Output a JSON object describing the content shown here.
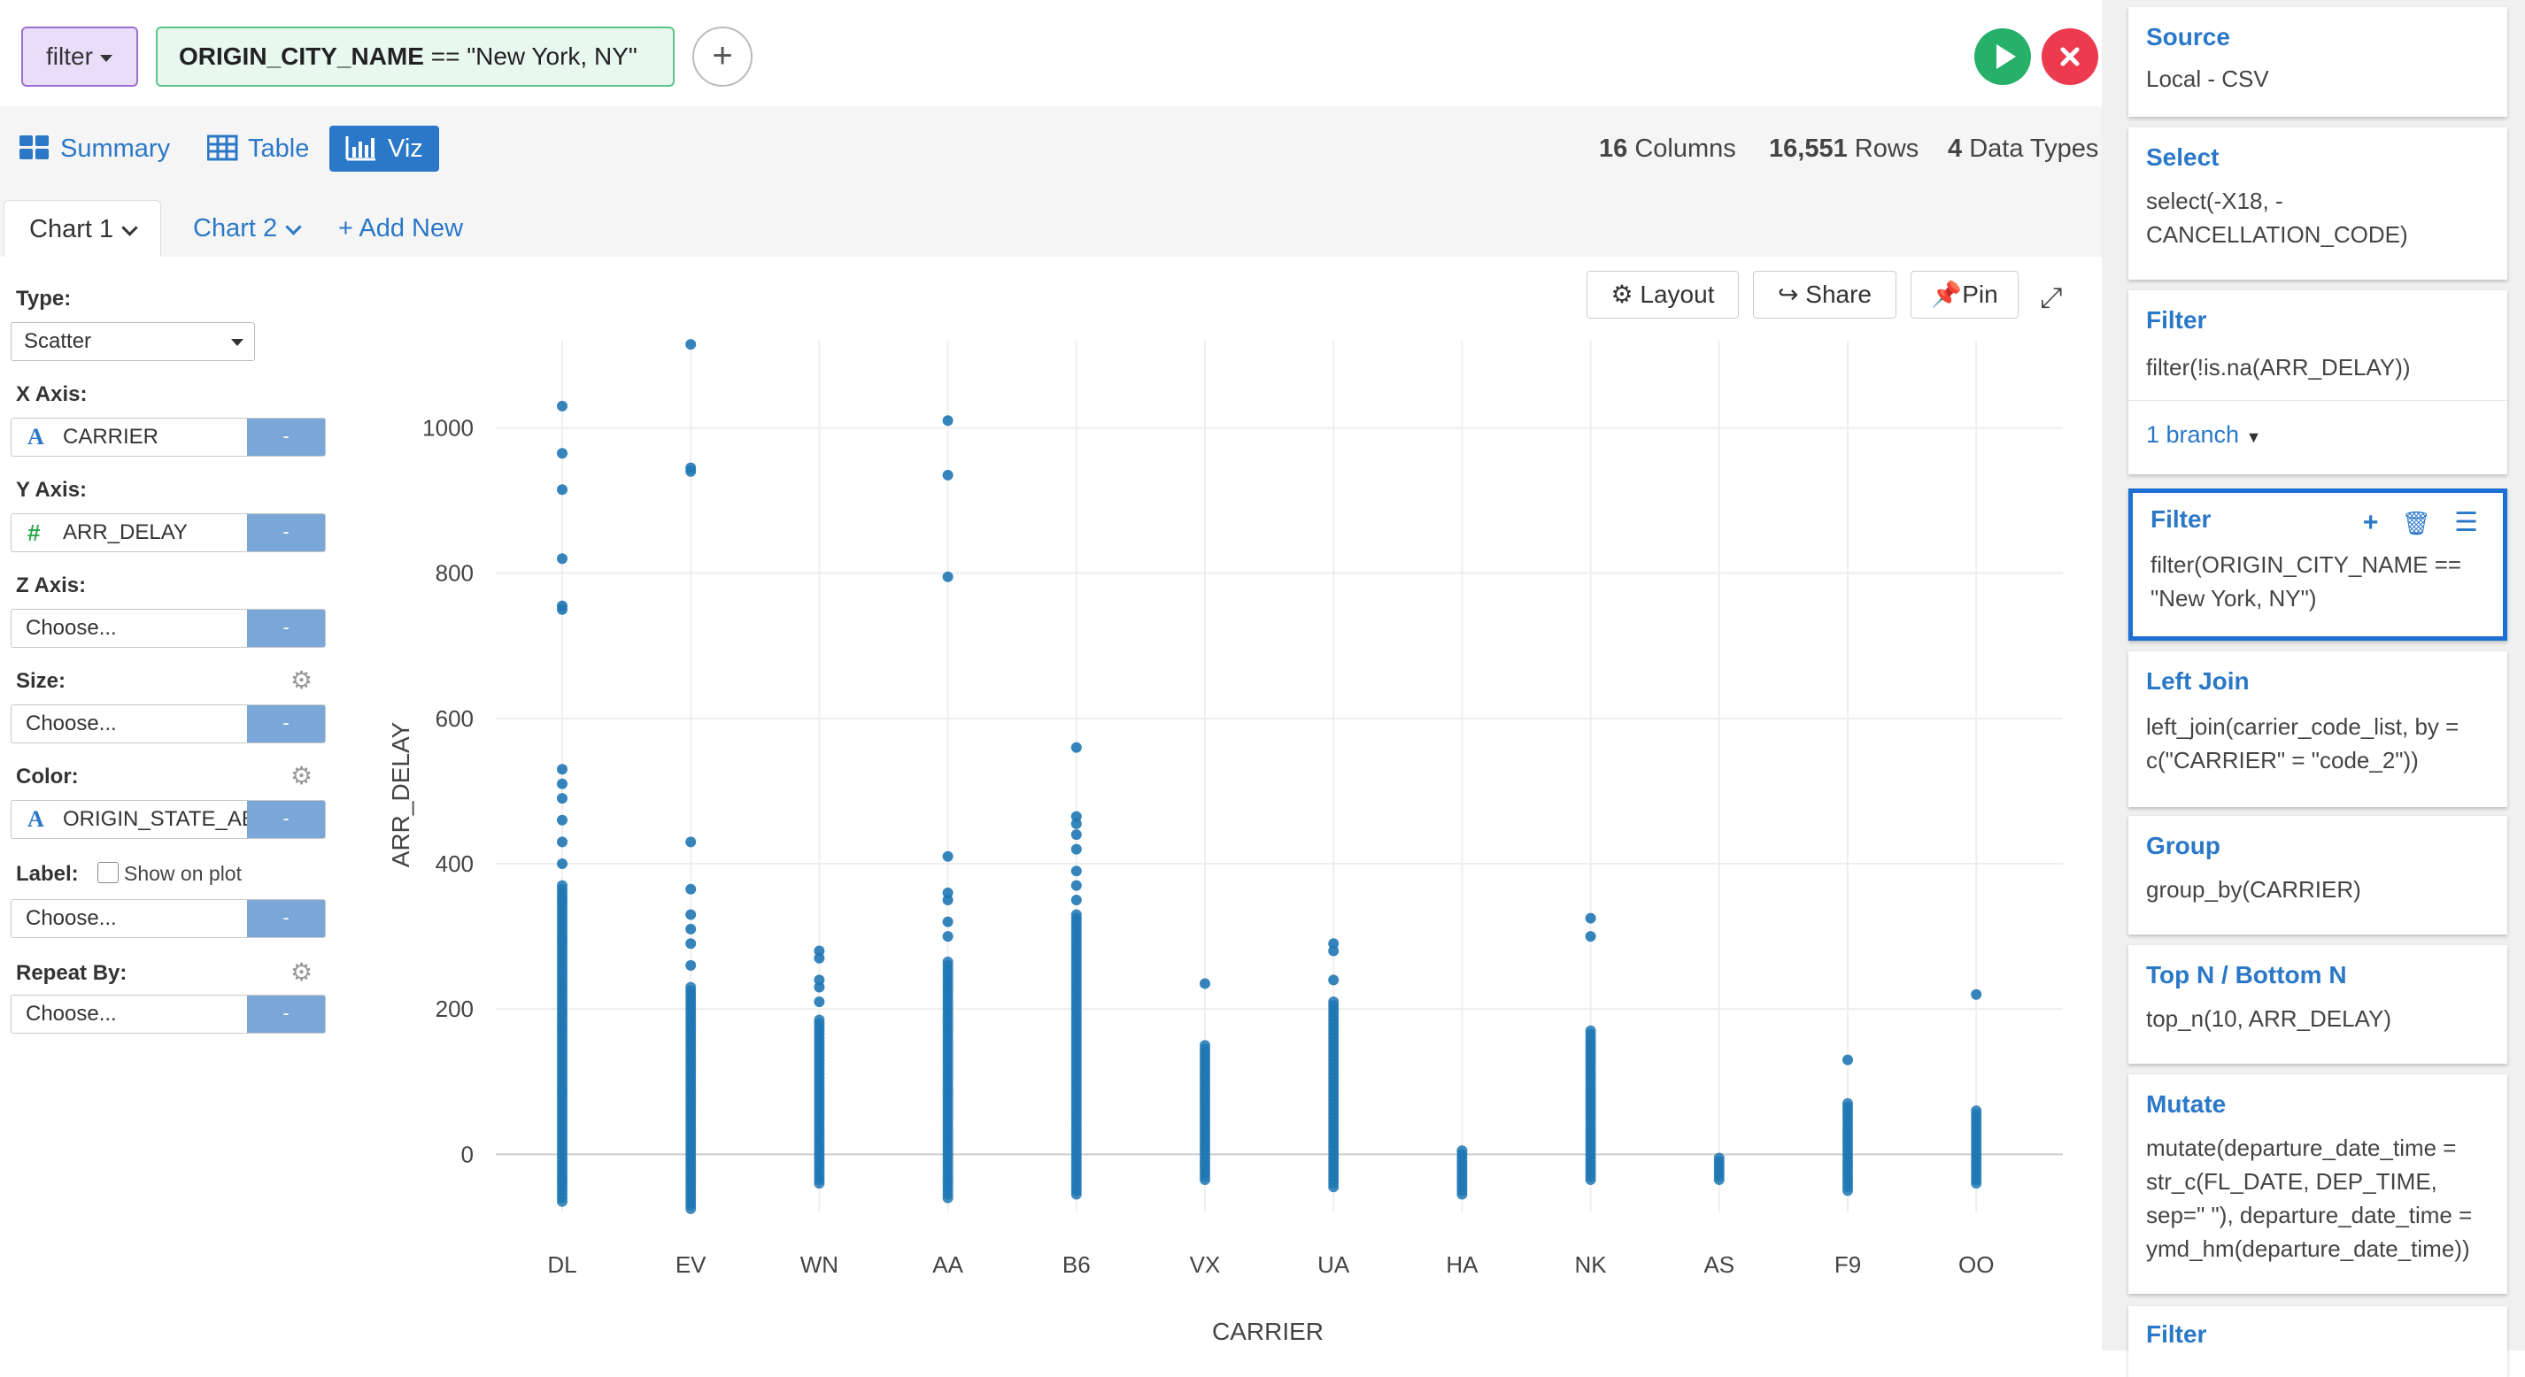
{
  "topbar": {
    "command_label": "filter",
    "filter_field": "ORIGIN_CITY_NAME",
    "filter_rest": " == \"New York, NY\"",
    "add_label": "+"
  },
  "view_tabs": [
    {
      "label": "Summary",
      "icon": "summary-grid-icon"
    },
    {
      "label": "Table",
      "icon": "table-icon"
    },
    {
      "label": "Viz",
      "icon": "bar-chart-icon",
      "active": true
    }
  ],
  "stats": {
    "columns_value": "16",
    "columns_label": "Columns",
    "rows_value": "16,551",
    "rows_label": "Rows",
    "types_value": "4",
    "types_label": "Data Types"
  },
  "chart_tabs": {
    "chart1": "Chart 1",
    "chart2": "Chart 2",
    "add_new": "+ Add New"
  },
  "config": {
    "type_label": "Type:",
    "type_value": "Scatter",
    "x_label": "X Axis:",
    "x_value": "CARRIER",
    "x_icon": "A",
    "y_label": "Y Axis:",
    "y_value": "ARR_DELAY",
    "y_icon": "#",
    "z_label": "Z Axis:",
    "z_value": "Choose...",
    "size_label": "Size:",
    "size_value": "Choose...",
    "color_label": "Color:",
    "color_value": "ORIGIN_STATE_AB",
    "color_icon": "A",
    "label_label": "Label:",
    "label_checkbox": "Show on plot",
    "label_value": "Choose...",
    "repeat_label": "Repeat By:",
    "repeat_value": "Choose...",
    "btn_text": "-"
  },
  "toolbar": {
    "layout": "Layout",
    "share": "Share",
    "pin": "Pin"
  },
  "chart_data": {
    "type": "scatter",
    "xlabel": "CARRIER",
    "ylabel": "ARR_DELAY",
    "categories": [
      "DL",
      "EV",
      "WN",
      "AA",
      "B6",
      "VX",
      "UA",
      "HA",
      "NK",
      "AS",
      "F9",
      "OO"
    ],
    "y_ticks": [
      0,
      200,
      400,
      600,
      800,
      1000
    ],
    "ylim": [
      -80,
      1120
    ],
    "grid": true,
    "color": "#1f77b4",
    "series": [
      {
        "category": "DL",
        "min": -65,
        "max": 370,
        "outliers": [
          1030,
          965,
          915,
          820,
          755,
          750,
          530,
          510,
          490,
          460,
          430,
          400
        ]
      },
      {
        "category": "EV",
        "min": -75,
        "max": 230,
        "outliers": [
          1115,
          945,
          940,
          430,
          365,
          330,
          310,
          290,
          260
        ]
      },
      {
        "category": "WN",
        "min": -40,
        "max": 185,
        "outliers": [
          280,
          270,
          240,
          230,
          210
        ]
      },
      {
        "category": "AA",
        "min": -60,
        "max": 265,
        "outliers": [
          1010,
          935,
          795,
          410,
          360,
          350,
          320,
          300
        ]
      },
      {
        "category": "B6",
        "min": -55,
        "max": 330,
        "outliers": [
          560,
          465,
          455,
          440,
          420,
          390,
          370,
          350
        ]
      },
      {
        "category": "VX",
        "min": -35,
        "max": 150,
        "outliers": [
          235
        ]
      },
      {
        "category": "UA",
        "min": -45,
        "max": 210,
        "outliers": [
          290,
          280,
          240
        ]
      },
      {
        "category": "HA",
        "min": -55,
        "max": 5,
        "outliers": []
      },
      {
        "category": "NK",
        "min": -35,
        "max": 170,
        "outliers": [
          325,
          300
        ]
      },
      {
        "category": "AS",
        "min": -35,
        "max": -5,
        "outliers": []
      },
      {
        "category": "F9",
        "min": -50,
        "max": 70,
        "outliers": [
          130
        ]
      },
      {
        "category": "OO",
        "min": -40,
        "max": 60,
        "outliers": [
          220
        ]
      }
    ]
  },
  "pipeline": [
    {
      "title": "Source",
      "body": "Local - CSV"
    },
    {
      "title": "Select",
      "body": "select(-X18, -\nCANCELLATION_CODE)"
    },
    {
      "title": "Filter",
      "body": "filter(!is.na(ARR_DELAY))",
      "branch": "1 branch"
    },
    {
      "title": "Filter",
      "body": "filter(ORIGIN_CITY_NAME ==\n\"New York, NY\")",
      "selected": true
    },
    {
      "title": "Left Join",
      "body": "left_join(carrier_code_list, by =\nc(\"CARRIER\" = \"code_2\"))"
    },
    {
      "title": "Group",
      "body": "group_by(CARRIER)"
    },
    {
      "title": "Top N / Bottom N",
      "body": "top_n(10, ARR_DELAY)"
    },
    {
      "title": "Mutate",
      "body": "mutate(departure_date_time =\nstr_c(FL_DATE, DEP_TIME,\nsep=\" \"), departure_date_time =\nymd_hm(departure_date_time))"
    },
    {
      "title": "Filter",
      "body": ""
    }
  ],
  "colors": {
    "accent": "#2a78c7",
    "run": "#27b06a",
    "cancel": "#ec3b4f",
    "point": "#1f77b4",
    "selected_border": "#1c6fd3"
  }
}
